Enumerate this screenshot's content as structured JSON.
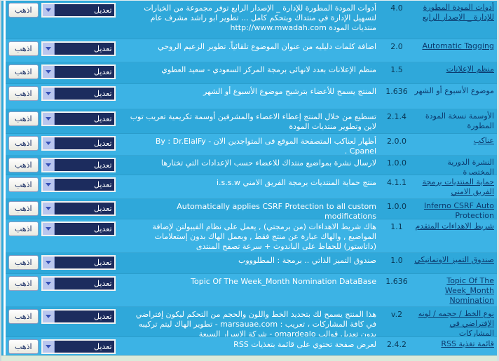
{
  "controls": {
    "go_label": "اذهب",
    "action_selected": "تعديل"
  },
  "colors": {
    "row_odd": "#2fa8da",
    "row_even": "#3cb3e5",
    "title_link": "#0c3a6e",
    "description_text": "#ffffff",
    "select_bg": "#1c2c5e",
    "select_arrow_bg": "#b9c6ee",
    "table_border": "#ffffff",
    "bottom_bar": "#dcead9"
  },
  "rows": [
    {
      "title": "أدوات المودة المطورة للإدارة _ الإصدار الرابع",
      "underlined": true,
      "version": "4.0",
      "description": "أدوات المودة المطورة للإدارة _ الإصدار الرابع توفر مجموعة من الخيارات لتسهيل الإدارة في منتداك وبتحكم كامل ... تطوير ابو راشد مشرف عام منتديات المودة http://www.mwadah.com"
    },
    {
      "title": "Automatic Tagging",
      "underlined": true,
      "version": "2.0",
      "description": "اضافة كلمات دليليه من عنوان الموضوع تلقائياً. تطوير الزعيم الروحي"
    },
    {
      "title": "منظم الإعلانات",
      "underlined": true,
      "version": "1.5",
      "description": "منظم الإعلانات بعدد لانهائى برمجة المركز السعودي - سعيد العطوي"
    },
    {
      "title": "موضوع الأسبوع أو الشهر",
      "underlined": false,
      "version": "1.636",
      "description": "المنتج يسمح للأعضاء بترشيح موضوع الأسبوع أو الشهر"
    },
    {
      "title": "الأوسمة نسخة المودة المطورة",
      "underlined": false,
      "version": "2.1.4",
      "description": "تسطيع من خلال المنتج إعطاء الاعضاء والمشرفين أوسمة تكريمية تعريب توب لاين وتطوير منتديات المودة"
    },
    {
      "title": "عناكب",
      "underlined": true,
      "version": "2.0.0",
      "description": "أظهار لعناكب المتصفحة الموقع فى المتواجدين الان By : Dr.ElalFy - Cpanel ."
    },
    {
      "title": "النشرة الدورية المختصرة",
      "underlined": false,
      "version": "1.0.0",
      "description": "لارسال نشرة بمواضيع منتداك للاعضاء حسب الإعدادات التي تختارها"
    },
    {
      "title": "حماية المنتديات برمجة الفريق الامني",
      "underlined": true,
      "version": "4.1.1",
      "description": "منتج حماية المنتديات برمجة الفريق الامني i.s.s.w"
    },
    {
      "title": "Inferno CSRF Auto Protection",
      "underlined": true,
      "version": "1.0.0",
      "description": "Automatically applies CSRF Protection to all custom modifications"
    },
    {
      "title": "شريط الاهداءات المتقدم",
      "underlined": true,
      "version": "1.1",
      "description": "هاك شريط الاهداءات (من برمجتي) , يعمل على نظام الفيبولتن لإضافة المواضيع , والهاك عبارة عن منتج فقط , وبعمل الهاك بدون إستعلامات (داتاستور) للحفاظ على الباندوث + سرعة تصفح المنتدى"
    },
    {
      "title": "صندوق التميز الاوتماتيكي",
      "underlined": true,
      "version": "1.0",
      "description": "صندوق التميز الذاتي .. برمجة : المطلوووب"
    },
    {
      "title": "Topic Of The Week_Month Nomination DataBase",
      "underlined": true,
      "version": "1.636",
      "description": "Topic Of The Week_Month Nomination DataBase"
    },
    {
      "title": "نوع الخط / حجمه / لونه الإفتراضي في المشاركات",
      "underlined": true,
      "version": "v.2",
      "description": "هذا المنتج يسمح لك بتحديد الخط واللون والحجم من التحكم ليكون إفتراضي في كافة المشاركات ، تعريب : marsauae.com - تطوير الهاك ليتم تركيبه بدون تعديل قوالب omardealo - شركة الاسرار السبعة"
    },
    {
      "title": "قائمة تغذية RSS",
      "underlined": true,
      "version": "2.4.2",
      "description": "لعرض صفحة تحتوي على قائمة بتغذيات RSS"
    }
  ]
}
